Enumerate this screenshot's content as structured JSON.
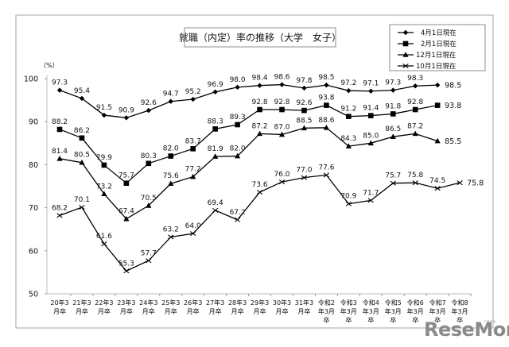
{
  "chart_data": {
    "type": "line",
    "title": "就職（内定）率の推移（大学　女子）",
    "xlabel": "",
    "ylabel": "（%）",
    "ylim": [
      50,
      100
    ],
    "yticks": [
      50,
      60,
      70,
      80,
      90,
      100
    ],
    "grid": false,
    "legend_position": "top-right",
    "categories": [
      [
        "20年3",
        "月卒"
      ],
      [
        "21年3",
        "月卒"
      ],
      [
        "22年3",
        "月卒"
      ],
      [
        "23年3",
        "月卒"
      ],
      [
        "24年3",
        "月卒"
      ],
      [
        "25年3",
        "月卒"
      ],
      [
        "26年3",
        "月卒"
      ],
      [
        "27年3",
        "月卒"
      ],
      [
        "28年3",
        "月卒"
      ],
      [
        "29年3",
        "月卒"
      ],
      [
        "30年3",
        "月卒"
      ],
      [
        "31年3",
        "月卒"
      ],
      [
        "令和2",
        "年3月",
        "卒"
      ],
      [
        "令和3",
        "年3月",
        "卒"
      ],
      [
        "令和4",
        "年3月",
        "卒"
      ],
      [
        "令和5",
        "年3月",
        "卒"
      ],
      [
        "令和6",
        "年3月",
        "卒"
      ],
      [
        "令和7",
        "年3月",
        "卒"
      ],
      [
        "令和8",
        "年3月",
        "卒"
      ]
    ],
    "series": [
      {
        "name": "4月1日現在",
        "marker": "diamond",
        "values": [
          97.3,
          95.4,
          91.5,
          90.9,
          92.6,
          94.7,
          95.2,
          96.9,
          98.0,
          98.4,
          98.6,
          97.8,
          98.5,
          97.2,
          97.1,
          97.3,
          98.3,
          98.5,
          null
        ]
      },
      {
        "name": "2月1日現在",
        "marker": "square",
        "values": [
          88.2,
          86.2,
          79.9,
          75.7,
          80.3,
          82.0,
          83.7,
          88.3,
          89.3,
          92.8,
          92.8,
          92.6,
          93.8,
          91.2,
          91.4,
          91.8,
          92.8,
          93.8,
          null
        ]
      },
      {
        "name": "12月1日現在",
        "marker": "triangle",
        "values": [
          81.4,
          80.5,
          73.2,
          67.4,
          70.5,
          75.6,
          77.2,
          81.9,
          82.0,
          87.2,
          87.0,
          88.5,
          88.6,
          84.3,
          85.0,
          86.5,
          87.2,
          85.5,
          null
        ]
      },
      {
        "name": "10月1日現在",
        "marker": "cross",
        "values": [
          68.2,
          70.1,
          61.6,
          55.3,
          57.7,
          63.2,
          64.0,
          69.4,
          67.2,
          73.6,
          76.0,
          77.0,
          77.6,
          70.9,
          71.7,
          75.7,
          75.8,
          74.5,
          75.8
        ]
      }
    ]
  },
  "watermark": {
    "text": "ReseMom",
    "ruby": "リセマム"
  }
}
